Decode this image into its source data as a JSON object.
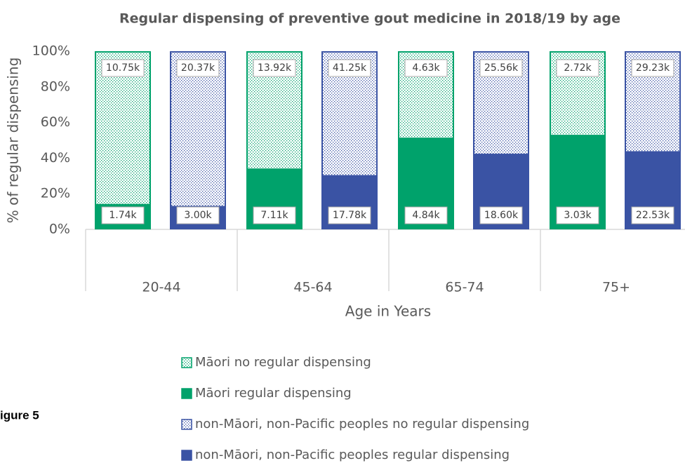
{
  "chart_data": {
    "type": "stacked_bar_100",
    "title": "Regular dispensing of preventive gout medicine in 2018/19 by age",
    "y_label": "% of regular dispensing",
    "x_label": "Age in Years",
    "figure_label": "igure 5",
    "categories": [
      "20-44",
      "45-64",
      "65-74",
      "75+"
    ],
    "series": [
      {
        "name": "Māori no regular dispensing",
        "color": "#00a26b",
        "pattern": true,
        "values": [
          86.1,
          66.2,
          48.9,
          47.3
        ],
        "counts": [
          "10.75k",
          "13.92k",
          "4.63k",
          "2.72k"
        ]
      },
      {
        "name": "Māori regular dispensing",
        "color": "#00a26b",
        "pattern": false,
        "values": [
          13.9,
          33.8,
          51.1,
          52.7
        ],
        "counts": [
          "1.74k",
          "7.11k",
          "4.84k",
          "3.03k"
        ]
      },
      {
        "name": "non-Māori, non-Pacific peoples no regular dispensing",
        "color": "#3a53a4",
        "pattern": true,
        "values": [
          87.2,
          69.9,
          57.9,
          56.5
        ],
        "counts": [
          "20.37k",
          "41.25k",
          "25.56k",
          "29.23k"
        ]
      },
      {
        "name": "non-Māori, non-Pacific peoples regular dispensing",
        "color": "#3a53a4",
        "pattern": false,
        "values": [
          12.8,
          30.1,
          42.1,
          43.5
        ],
        "counts": [
          "3.00k",
          "17.78k",
          "18.60k",
          "22.53k"
        ]
      }
    ],
    "ylim": [
      0,
      100
    ],
    "yticks": [
      {
        "value": 0,
        "label": "0%"
      },
      {
        "value": 20,
        "label": "20%"
      },
      {
        "value": 40,
        "label": "40%"
      },
      {
        "value": 60,
        "label": "60%"
      },
      {
        "value": 80,
        "label": "80%"
      },
      {
        "value": 100,
        "label": "100%"
      }
    ],
    "grid": false
  }
}
